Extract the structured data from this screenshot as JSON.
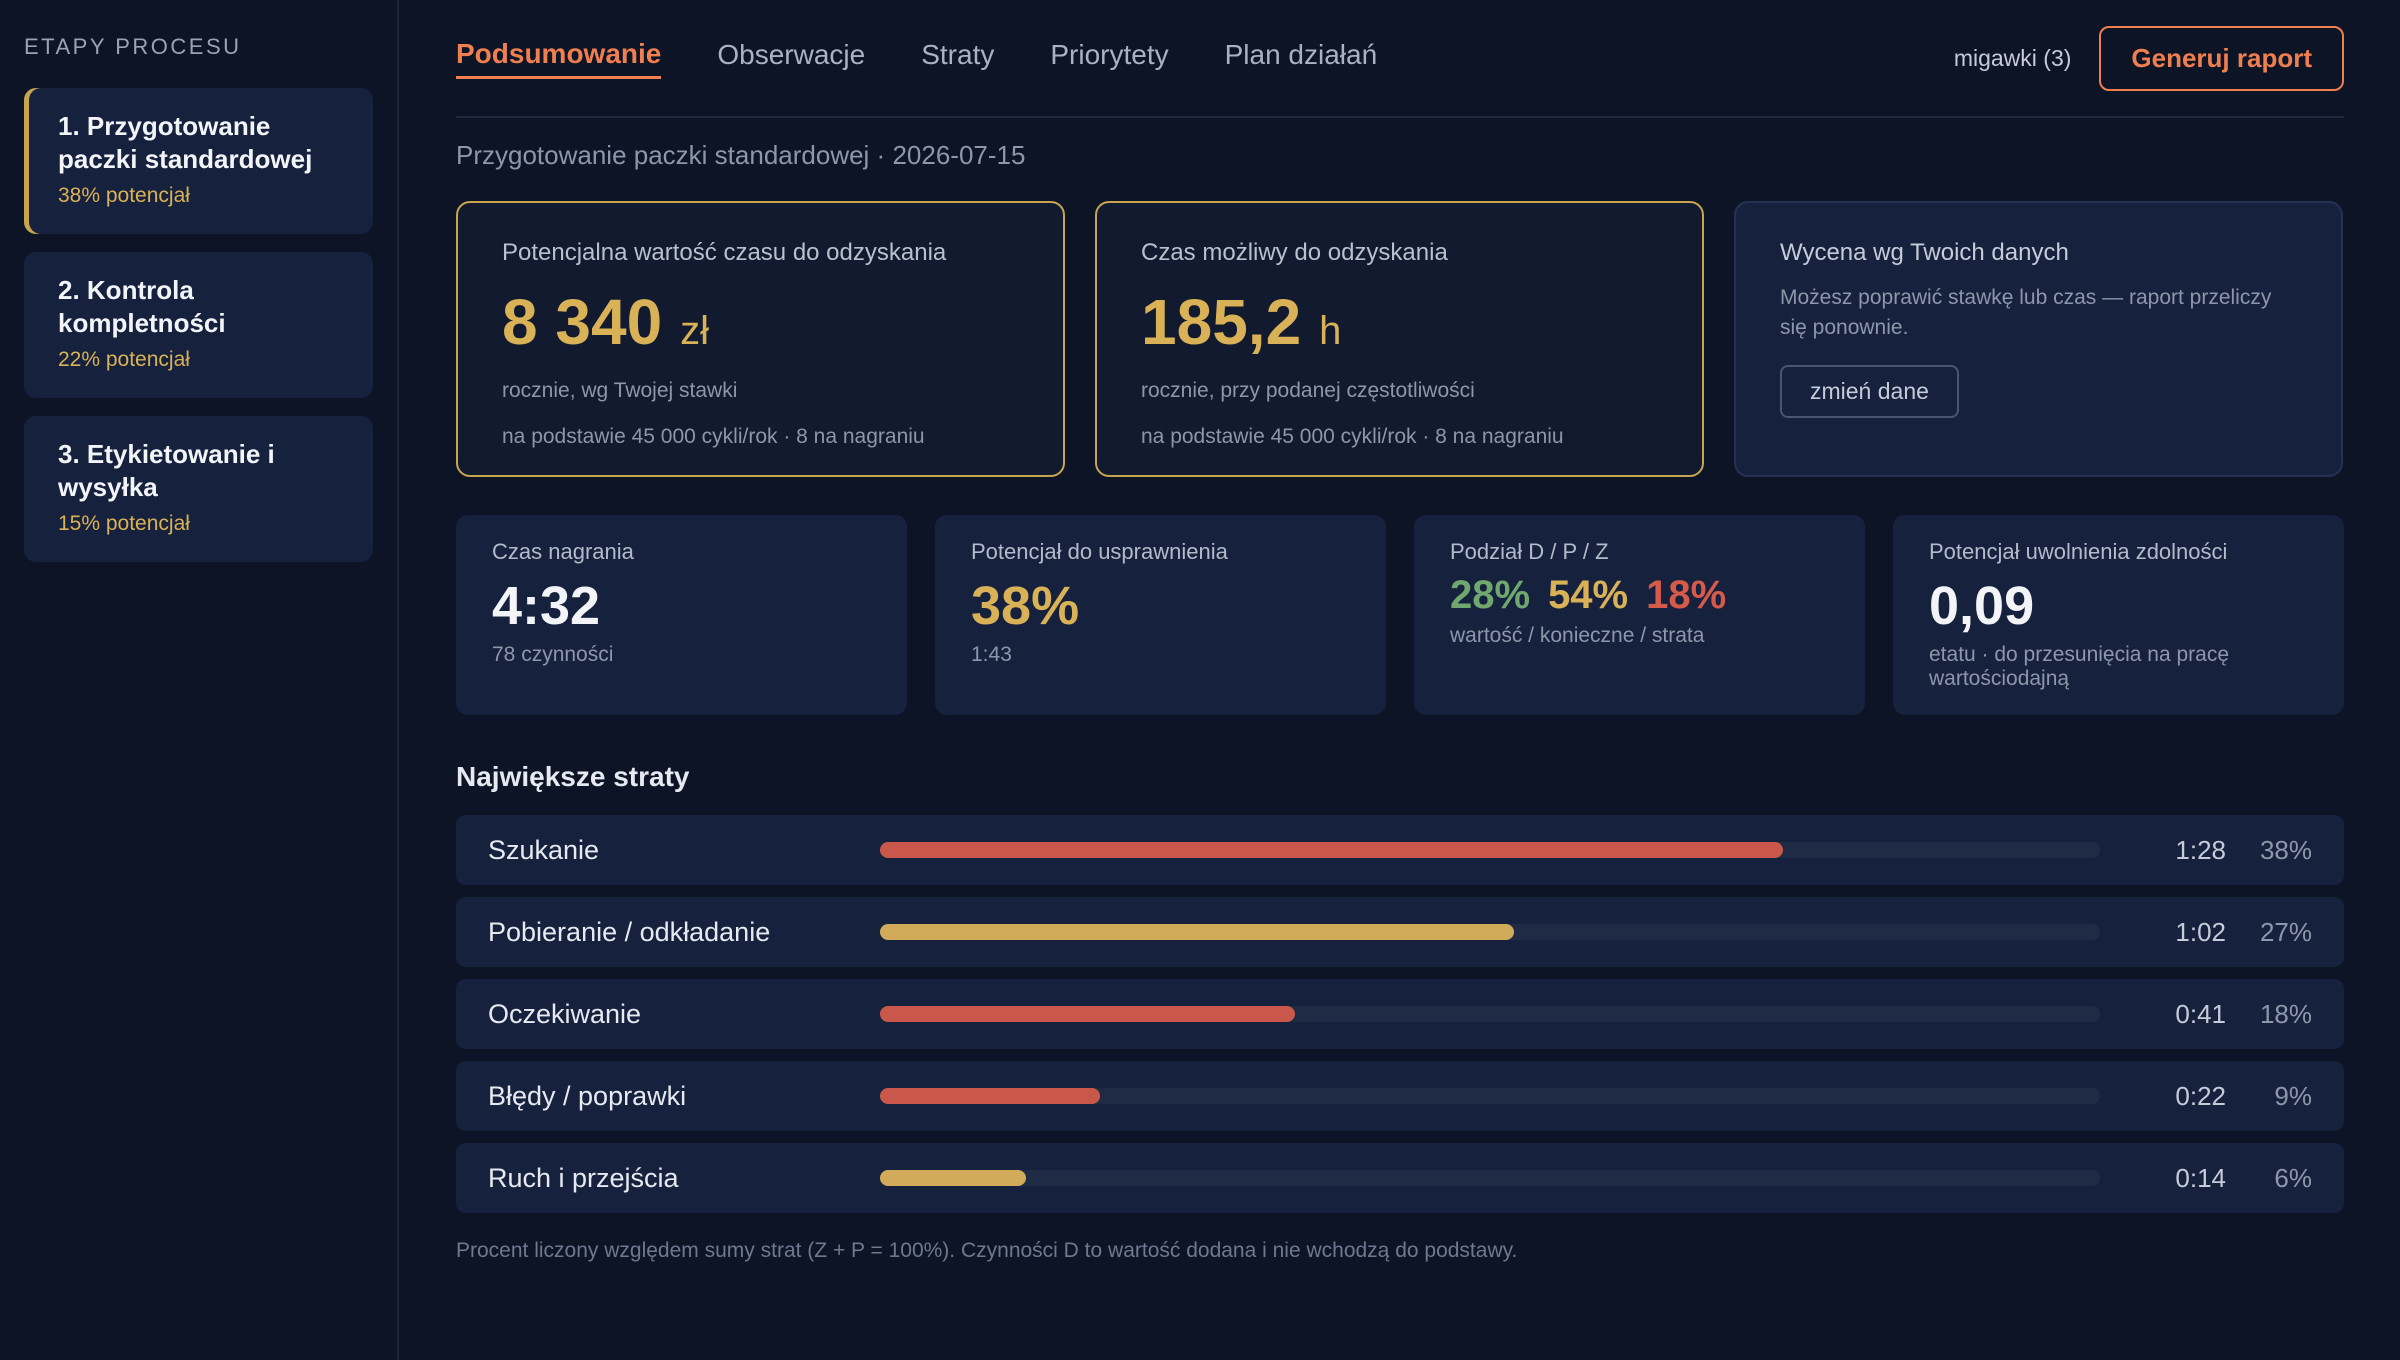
{
  "sidebar": {
    "title": "ETAPY PROCESU",
    "stages": [
      {
        "name": "1. Przygotowanie paczki standardowej",
        "potential": "38% potencjał"
      },
      {
        "name": "2. Kontrola kompletności",
        "potential": "22% potencjał"
      },
      {
        "name": "3. Etykietowanie i wysyłka",
        "potential": "15% potencjał"
      }
    ]
  },
  "header": {
    "tabs": [
      "Podsumowanie",
      "Obserwacje",
      "Straty",
      "Priorytety",
      "Plan działań"
    ],
    "snapshots": "migawki (3)",
    "generate_label": "Generuj raport"
  },
  "subtitle": "Przygotowanie paczki standardowej · 2026-07-15",
  "cards": {
    "value": {
      "label": "Potencjalna wartość czasu do odzyskania",
      "number": "8 340",
      "unit": "zł",
      "sub": "rocznie, wg Twojej stawki",
      "basis": "na podstawie 45 000 cykli/rok · 8 na nagraniu"
    },
    "time": {
      "label": "Czas możliwy do odzyskania",
      "number": "185,2",
      "unit": "h",
      "sub": "rocznie, przy podanej częstotliwości",
      "basis": "na podstawie 45 000 cykli/rok · 8 na nagraniu"
    },
    "own": {
      "title": "Wycena wg Twoich danych",
      "text": "Możesz poprawić stawkę lub czas — raport przeliczy się ponownie.",
      "button": "zmień dane"
    }
  },
  "kpis": {
    "recording": {
      "label": "Czas nagrania",
      "value": "4:32",
      "sub": "78 czynności"
    },
    "potential": {
      "label": "Potencjał do usprawnienia",
      "value": "38%",
      "sub": "1:43"
    },
    "split": {
      "label": "Podział D / P / Z",
      "d": "28%",
      "p": "54%",
      "z": "18%",
      "sub": "wartość / konieczne / strata"
    },
    "capacity": {
      "label": "Potencjał uwolnienia zdolności",
      "value": "0,09",
      "sub": "etatu · do przesunięcia na pracę wartościodajną"
    }
  },
  "losses": {
    "title": "Największe straty",
    "items": [
      {
        "name": "Szukanie",
        "time": "1:28",
        "pct": "38%",
        "fraction": 0.74,
        "color": "#c9574a"
      },
      {
        "name": "Pobieranie / odkładanie",
        "time": "1:02",
        "pct": "27%",
        "fraction": 0.52,
        "color": "#d1ab5a"
      },
      {
        "name": "Oczekiwanie",
        "time": "0:41",
        "pct": "18%",
        "fraction": 0.34,
        "color": "#c9574a"
      },
      {
        "name": "Błędy / poprawki",
        "time": "0:22",
        "pct": "9%",
        "fraction": 0.18,
        "color": "#c9574a"
      },
      {
        "name": "Ruch i przejścia",
        "time": "0:14",
        "pct": "6%",
        "fraction": 0.12,
        "color": "#d1ab5a"
      }
    ],
    "footnote": "Procent liczony względem sumy strat (Z + P = 100%). Czynności D to wartość dodana i nie wchodzą do podstawy."
  }
}
